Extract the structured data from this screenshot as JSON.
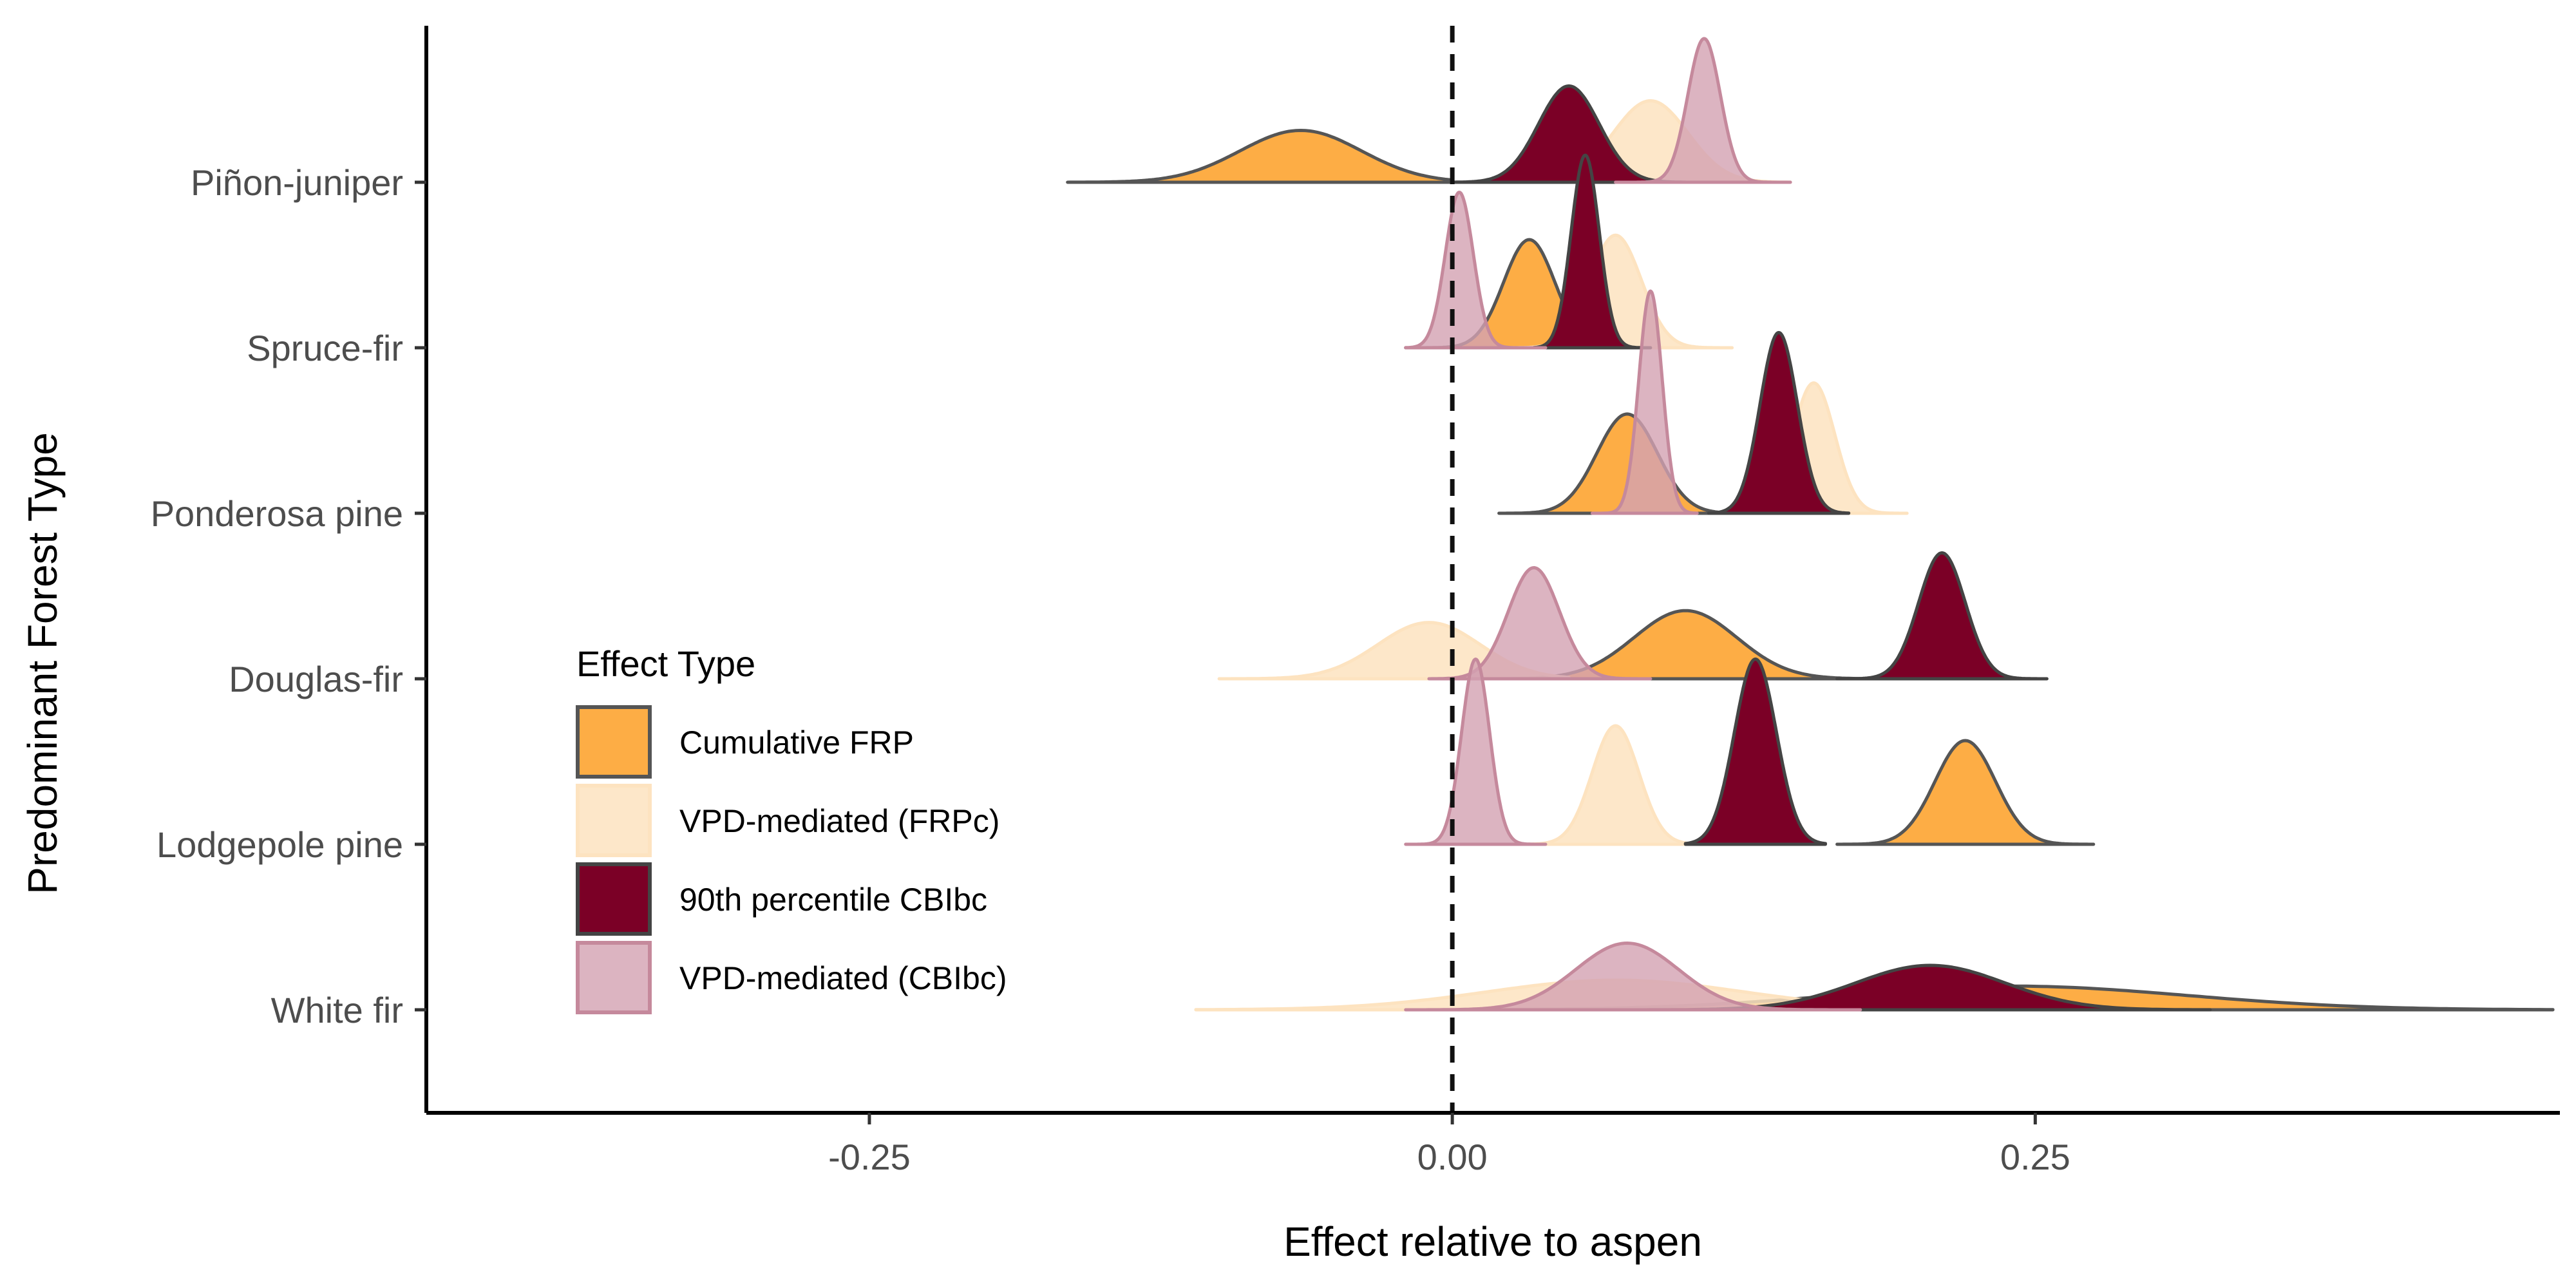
{
  "chart_data": {
    "type": "ridgeline",
    "xlabel": "Effect relative to aspen",
    "ylabel": "Predominant Forest Type",
    "xlim": [
      -0.44,
      0.475
    ],
    "x_ticks": [
      {
        "value": -0.25,
        "label": "-0.25"
      },
      {
        "value": 0.0,
        "label": "0.00"
      },
      {
        "value": 0.25,
        "label": "0.25"
      }
    ],
    "reference_line": {
      "x": 0,
      "style": "dashed"
    },
    "grid": false,
    "legend": {
      "title": "Effect Type",
      "placement": "bottom-left inside plot",
      "entries": [
        {
          "label": "Cumulative FRP",
          "color": "#fdad45",
          "stroke": "#555555",
          "opacity": 1
        },
        {
          "label": "VPD-mediated (FRPc)",
          "color": "#fde3c0",
          "stroke": "#fde3c0",
          "opacity": 0.85
        },
        {
          "label": "90th percentile CBIbc",
          "color": "#7b0026",
          "stroke": "#444444",
          "opacity": 1
        },
        {
          "label": "VPD-mediated (CBIbc)",
          "color": "#d3a1b1",
          "stroke": "#c5899c",
          "opacity": 0.8
        }
      ]
    },
    "categories": [
      "White fir",
      "Lodgepole pine",
      "Douglas-fir",
      "Ponderosa pine",
      "Spruce-fir",
      "Piñon-juniper"
    ],
    "series": [
      {
        "name": "Cumulative FRP",
        "distributions": [
          {
            "category": "White fir",
            "mean": 0.24,
            "sd": 0.075,
            "height": 0.16,
            "xmin": 0.015,
            "xmax": 0.472
          },
          {
            "category": "Lodgepole pine",
            "mean": 0.22,
            "sd": 0.013,
            "height": 0.7,
            "xmin": 0.165,
            "xmax": 0.275
          },
          {
            "category": "Douglas-fir",
            "mean": 0.1,
            "sd": 0.022,
            "height": 0.46,
            "xmin": 0.02,
            "xmax": 0.18
          },
          {
            "category": "Ponderosa pine",
            "mean": 0.075,
            "sd": 0.013,
            "height": 0.67,
            "xmin": 0.02,
            "xmax": 0.13
          },
          {
            "category": "Spruce-fir",
            "mean": 0.033,
            "sd": 0.011,
            "height": 0.73,
            "xmin": -0.02,
            "xmax": 0.085
          },
          {
            "category": "Piñon-juniper",
            "mean": -0.065,
            "sd": 0.026,
            "height": 0.35,
            "xmin": -0.165,
            "xmax": 0.0
          }
        ]
      },
      {
        "name": "VPD-mediated (FRPc)",
        "distributions": [
          {
            "category": "White fir",
            "mean": 0.07,
            "sd": 0.055,
            "height": 0.2,
            "xmin": -0.11,
            "xmax": 0.18
          },
          {
            "category": "Lodgepole pine",
            "mean": 0.07,
            "sd": 0.01,
            "height": 0.8,
            "xmin": 0.025,
            "xmax": 0.105
          },
          {
            "category": "Douglas-fir",
            "mean": -0.01,
            "sd": 0.022,
            "height": 0.38,
            "xmin": -0.1,
            "xmax": 0.05
          },
          {
            "category": "Ponderosa pine",
            "mean": 0.155,
            "sd": 0.009,
            "height": 0.88,
            "xmin": 0.12,
            "xmax": 0.195
          },
          {
            "category": "Spruce-fir",
            "mean": 0.07,
            "sd": 0.011,
            "height": 0.76,
            "xmin": 0.02,
            "xmax": 0.12
          },
          {
            "category": "Piñon-juniper",
            "mean": 0.085,
            "sd": 0.016,
            "height": 0.55,
            "xmin": 0.01,
            "xmax": 0.145
          }
        ]
      },
      {
        "name": "90th percentile CBIbc",
        "distributions": [
          {
            "category": "White fir",
            "mean": 0.205,
            "sd": 0.032,
            "height": 0.3,
            "xmin": 0.02,
            "xmax": 0.325
          },
          {
            "category": "Lodgepole pine",
            "mean": 0.13,
            "sd": 0.009,
            "height": 1.25,
            "xmin": 0.1,
            "xmax": 0.16
          },
          {
            "category": "Douglas-fir",
            "mean": 0.21,
            "sd": 0.01,
            "height": 0.85,
            "xmin": 0.165,
            "xmax": 0.255
          },
          {
            "category": "Ponderosa pine",
            "mean": 0.14,
            "sd": 0.008,
            "height": 1.22,
            "xmin": 0.11,
            "xmax": 0.17
          },
          {
            "category": "Spruce-fir",
            "mean": 0.057,
            "sd": 0.006,
            "height": 1.3,
            "xmin": 0.035,
            "xmax": 0.085
          },
          {
            "category": "Piñon-juniper",
            "mean": 0.05,
            "sd": 0.013,
            "height": 0.65,
            "xmin": 0.0,
            "xmax": 0.1
          }
        ]
      },
      {
        "name": "VPD-mediated (CBIbc)",
        "distributions": [
          {
            "category": "White fir",
            "mean": 0.075,
            "sd": 0.022,
            "height": 0.45,
            "xmin": -0.02,
            "xmax": 0.175
          },
          {
            "category": "Lodgepole pine",
            "mean": 0.01,
            "sd": 0.006,
            "height": 1.25,
            "xmin": -0.02,
            "xmax": 0.04
          },
          {
            "category": "Douglas-fir",
            "mean": 0.035,
            "sd": 0.011,
            "height": 0.75,
            "xmin": -0.01,
            "xmax": 0.085
          },
          {
            "category": "Ponderosa pine",
            "mean": 0.085,
            "sd": 0.005,
            "height": 1.5,
            "xmin": 0.06,
            "xmax": 0.105
          },
          {
            "category": "Spruce-fir",
            "mean": 0.003,
            "sd": 0.006,
            "height": 1.05,
            "xmin": -0.02,
            "xmax": 0.04
          },
          {
            "category": "Piñon-juniper",
            "mean": 0.108,
            "sd": 0.007,
            "height": 0.97,
            "xmin": 0.07,
            "xmax": 0.145
          }
        ]
      }
    ]
  }
}
